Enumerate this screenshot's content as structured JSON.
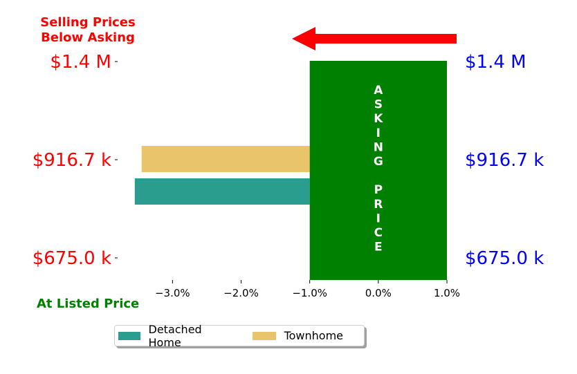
{
  "chart_data": {
    "type": "bar",
    "orientation": "horizontal",
    "series": [
      {
        "name": "Detached Home",
        "values": [
          -3.55
        ],
        "color": "#2a9d8f"
      },
      {
        "name": "Townhome",
        "values": [
          -3.45
        ],
        "color": "#e9c46a"
      }
    ],
    "asking_band": {
      "x": [
        -1.0,
        1.0
      ],
      "label": "ASKING PRICE",
      "color": "#008000"
    },
    "xlim": [
      -3.8,
      1.0
    ],
    "xticks": [
      "−3.0%",
      "−2.0%",
      "−1.0%",
      "0.0%",
      "1.0%"
    ],
    "xtick_values": [
      -3.0,
      -2.0,
      -1.0,
      0.0,
      1.0
    ],
    "y_left_ticks": [
      "$1.4 M",
      "$916.7 k",
      "$675.0 k"
    ],
    "y_right_ticks": [
      "$1.4 M",
      "$916.7 k",
      "$675.0 k"
    ],
    "annotation_top": [
      "Selling Prices",
      "Below Asking"
    ],
    "annotation_bottom": "At Listed Price",
    "arrow_direction": "left",
    "colors": {
      "left_ticks": "#ff0000",
      "right_ticks": "#0000ff",
      "arrow": "#ff0000",
      "bottom_note": "#008000"
    },
    "legend": {
      "placement": "bottom"
    }
  }
}
